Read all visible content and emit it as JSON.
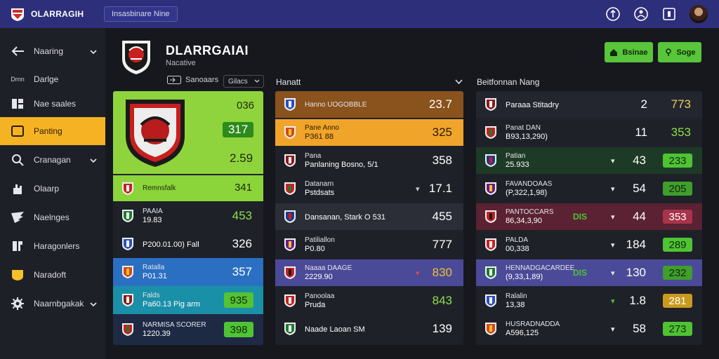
{
  "topbar": {
    "brand": "OLARRAGIH",
    "tab": "Insasbinare Nine"
  },
  "sidebar": [
    {
      "label": "Naaring",
      "icon": "arrow-left-icon",
      "chevron": true,
      "active": false
    },
    {
      "label": "Darlge",
      "icon": "text-mark-icon",
      "icon_text": "Drnn",
      "chevron": false,
      "active": false
    },
    {
      "label": "Nae saales",
      "icon": "grid-icon",
      "chevron": false,
      "active": false
    },
    {
      "label": "Panting",
      "icon": "square-icon",
      "chevron": false,
      "active": true
    },
    {
      "label": "Cranagan",
      "icon": "search-icon",
      "chevron": true,
      "active": false
    },
    {
      "label": "Olaarp",
      "icon": "hand-icon",
      "chevron": false,
      "active": false
    },
    {
      "label": "Naelnges",
      "icon": "wing-icon",
      "chevron": false,
      "active": false
    },
    {
      "label": "Haragonlers",
      "icon": "bracket-icon",
      "chevron": false,
      "active": false
    },
    {
      "label": "Naradoft",
      "icon": "yellow-badge-icon",
      "chevron": false,
      "active": false
    },
    {
      "label": "Naarnbgakak",
      "icon": "gear-icon",
      "chevron": true,
      "active": false
    }
  ],
  "club": {
    "title": "DLARRGAIAI",
    "subtitle": "Nacative",
    "control_a": "Sanoaars",
    "control_b": "Gilacs"
  },
  "buttons": {
    "primary": "Bsinae",
    "secondary": "Soge"
  },
  "columns": {
    "middle": "Hanatt",
    "right": "Beitfonnan Nang"
  },
  "left_panel": {
    "featured": {
      "values": [
        "036",
        "317",
        "2.59"
      ]
    },
    "rows": [
      {
        "line1": "Remnsfalk",
        "line2": "",
        "value": "341",
        "bg": "#8bd43a",
        "chip": false
      },
      {
        "line1": "PAAIA",
        "line2": "19.83",
        "value": "453",
        "bg": "#1f2129",
        "chip": false
      },
      {
        "line1": "",
        "line2": "P200.01.00) Fall",
        "value": "326",
        "bg": "#1f2129",
        "chip": false
      },
      {
        "line1": "Ratalla",
        "line2": "P01.31",
        "value": "357",
        "bg": "#2a6fc2",
        "chip": false
      },
      {
        "line1": "Falds",
        "line2": "Pa60.13 Pig arm",
        "value": "935",
        "bg": "#1a8fa8",
        "chip": true
      },
      {
        "line1": "NARMISA SCORER",
        "line2": "1220.39",
        "value": "398",
        "bg": "#1e2a44",
        "chip": true
      }
    ]
  },
  "mid_panel": {
    "rows": [
      {
        "line1": "Hanno UOGOBBLE",
        "line2": "",
        "value": "23.7",
        "bg": "#8a521c"
      },
      {
        "line1": "Pane Anno",
        "line2": "P361 88",
        "value": "325",
        "bg": "#f0a52a"
      },
      {
        "line1": "Pana",
        "line2": "Panlaning Bosno, 5/1",
        "value": "358",
        "bg": "#1f2129"
      },
      {
        "line1": "Datanarn",
        "line2": "Pstdsats",
        "value": "17.1",
        "bg": "#1f2129",
        "arrow": "▾"
      },
      {
        "line1": "",
        "line2": "Dansanan, Stark O 531",
        "value": "455",
        "bg": "#2c2e37"
      },
      {
        "line1": "Patiliallon",
        "line2": "P0.80",
        "value": "777",
        "bg": "#1f2129"
      },
      {
        "line1": "Naaaa DAAGE",
        "line2": "2229.90",
        "value": "830",
        "bg": "#4b4a98",
        "arrow": "▾"
      },
      {
        "line1": "Panoolaa",
        "line2": "Pruda",
        "value": "843",
        "bg": "#1f2129"
      },
      {
        "line1": "",
        "line2": "Naade Laoan  SM",
        "value": "139",
        "bg": "#1f2129"
      }
    ]
  },
  "right_panel": {
    "rows": [
      {
        "line1": "",
        "line2": "Paraaa Stitadry",
        "rank": "2",
        "score": "773",
        "bg": "#24262f",
        "chip": ""
      },
      {
        "line1": "Panat DAN",
        "line2": "B93,13,290)",
        "rank": "11",
        "score": "353",
        "bg": "#1f2129",
        "chip": ""
      },
      {
        "line1": "Patian",
        "line2": "25.933",
        "rank": "43",
        "score": "233",
        "bg": "#1d3a26",
        "chip": "#4fc334",
        "arrow": "▾"
      },
      {
        "line1": "FAVANDOAAS",
        "line2": "(P,322,1,98)",
        "rank": "54",
        "score": "205",
        "bg": "#1f2129",
        "chip": "#3f9e2c",
        "arrow": "▾"
      },
      {
        "line1": "PANTOCCARS",
        "line2": "86,34,3,90",
        "extra": "DIS",
        "rank": "44",
        "score": "353",
        "bg": "#5a2232",
        "chip": "#a8344a",
        "arrow": "▾"
      },
      {
        "line1": "PALDA",
        "line2": "00,338",
        "rank": "184",
        "score": "289",
        "bg": "#1f2129",
        "chip": "#4fc334",
        "arrow": "▾"
      },
      {
        "line1": "HENNADGACARDEE",
        "line2": "(9,33,1,89)",
        "extra": "DIS",
        "rank": "130",
        "score": "232",
        "bg": "#4b4a98",
        "chip": "#3f9e2c",
        "arrow": "▾"
      },
      {
        "line1": "Ralalin",
        "line2": "13,38",
        "rank": "1.8",
        "score": "281",
        "bg": "#1f2129",
        "chip": "#c99a1e",
        "arrow": "▾"
      },
      {
        "line1": "HUSRADNADDA",
        "line2": "A596,125",
        "rank": "58",
        "score": "273",
        "bg": "#1f2129",
        "chip": "#4fc334",
        "arrow": "▾"
      }
    ]
  },
  "colors": {
    "accent": "#f5b324",
    "topbar": "#2e2f7a",
    "green": "#58c53a"
  }
}
